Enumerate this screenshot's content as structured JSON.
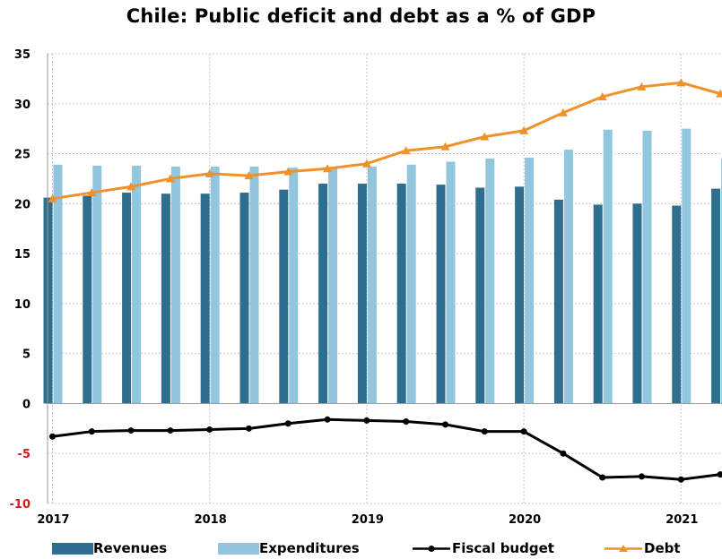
{
  "chart_data": {
    "type": "bar",
    "title": "Chile: Public deficit and debt as a % of GDP",
    "ylim": [
      -10,
      35
    ],
    "y_ticks": [
      "35",
      "30",
      "25",
      "20",
      "15",
      "10",
      "5",
      "0",
      "-5",
      "-10"
    ],
    "x_ticks": [
      "2017",
      "2018",
      "2019",
      "2020",
      "2021"
    ],
    "grid": true,
    "legend_position": "bottom",
    "quarters": [
      "2017Q1",
      "2017Q2",
      "2017Q3",
      "2017Q4",
      "2018Q1",
      "2018Q2",
      "2018Q3",
      "2018Q4",
      "2019Q1",
      "2019Q2",
      "2019Q3",
      "2019Q4",
      "2020Q1",
      "2020Q2",
      "2020Q3",
      "2020Q4",
      "2021Q1",
      "2021Q2"
    ],
    "series": [
      {
        "name": "Revenues",
        "type": "bar",
        "color": "#2e6e8e",
        "values": [
          20.6,
          20.8,
          21.1,
          21.0,
          21.0,
          21.1,
          21.4,
          22.0,
          22.0,
          22.0,
          21.9,
          21.6,
          21.7,
          20.4,
          19.9,
          20.0,
          19.8,
          21.5
        ]
      },
      {
        "name": "Expenditures",
        "type": "bar",
        "color": "#92c5de",
        "values": [
          23.9,
          23.8,
          23.8,
          23.7,
          23.7,
          23.7,
          23.6,
          23.6,
          23.7,
          23.9,
          24.2,
          24.5,
          24.6,
          25.4,
          27.4,
          27.3,
          27.5,
          24.5
        ]
      },
      {
        "name": "Fiscal budget",
        "type": "line",
        "color": "#000000",
        "values": [
          -3.3,
          -2.8,
          -2.7,
          -2.7,
          -2.6,
          -2.5,
          -2.0,
          -1.6,
          -1.7,
          -1.8,
          -2.1,
          -2.8,
          -2.8,
          -5.0,
          -7.4,
          -7.3,
          -7.6,
          -7.1
        ]
      },
      {
        "name": "Debt",
        "type": "line",
        "color": "#f0922a",
        "values": [
          20.5,
          21.1,
          21.7,
          22.5,
          23.0,
          22.8,
          23.2,
          23.5,
          24.0,
          25.3,
          25.7,
          26.7,
          27.3,
          29.1,
          30.7,
          31.7,
          32.1,
          31.0
        ]
      }
    ]
  }
}
